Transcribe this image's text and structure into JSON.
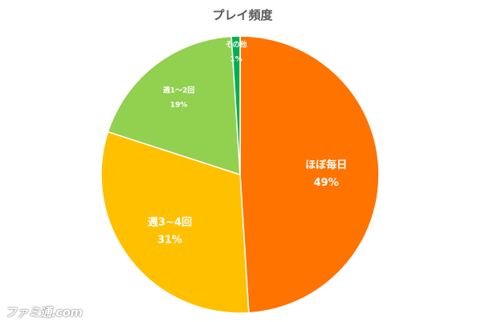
{
  "chart_data": {
    "type": "pie",
    "title": "プレイ頻度",
    "slices": [
      {
        "label": "ほぼ毎日",
        "value": 49,
        "value_label": "49%",
        "color": "#FF7300"
      },
      {
        "label": "週3~4回",
        "value": 31,
        "value_label": "31%",
        "color": "#FFC000"
      },
      {
        "label": "週1～2回",
        "value": 19,
        "value_label": "19%",
        "color": "#92D050"
      },
      {
        "label": "その他",
        "value": 1,
        "value_label": "1%",
        "color": "#00B050"
      }
    ],
    "start": "12 o'clock",
    "direction": "clockwise",
    "legend": "none",
    "labels": "inside"
  },
  "watermark": "ファミ通.com"
}
